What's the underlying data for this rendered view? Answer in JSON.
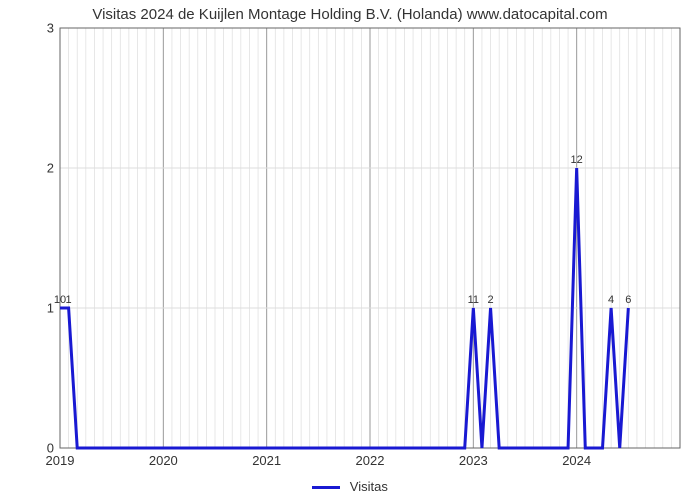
{
  "chart": {
    "type": "line",
    "title": "Visitas 2024 de Kuijlen Montage Holding B.V. (Holanda) www.datocapital.com",
    "legend_label": "Visitas",
    "line_color": "#1919d2",
    "line_width": 3,
    "background_color": "#ffffff",
    "border_color": "#666666",
    "major_grid_color": "#999999",
    "minor_grid_color": "#dddddd",
    "ylim": [
      0,
      3
    ],
    "ytick_step": 1,
    "yticks": [
      "0",
      "1",
      "2",
      "3"
    ],
    "x_range_months": 72,
    "x_years": [
      {
        "label": "2019",
        "month": 0
      },
      {
        "label": "2020",
        "month": 12
      },
      {
        "label": "2021",
        "month": 24
      },
      {
        "label": "2022",
        "month": 36
      },
      {
        "label": "2023",
        "month": 48
      },
      {
        "label": "2024",
        "month": 60
      }
    ],
    "time_series": [
      {
        "m": 0,
        "v": 1,
        "label": "10"
      },
      {
        "m": 1,
        "v": 1,
        "label": "1"
      },
      {
        "m": 2,
        "v": 0
      },
      {
        "m": 47,
        "v": 0
      },
      {
        "m": 48,
        "v": 1,
        "label": "11"
      },
      {
        "m": 49,
        "v": 0
      },
      {
        "m": 50,
        "v": 1,
        "label": "2"
      },
      {
        "m": 51,
        "v": 0
      },
      {
        "m": 59,
        "v": 0
      },
      {
        "m": 60,
        "v": 2,
        "label": "12"
      },
      {
        "m": 61,
        "v": 0
      },
      {
        "m": 62,
        "v": 0
      },
      {
        "m": 63,
        "v": 0
      },
      {
        "m": 64,
        "v": 1,
        "label": "4"
      },
      {
        "m": 65,
        "v": 0
      },
      {
        "m": 66,
        "v": 1,
        "label": "6"
      }
    ],
    "title_fontsize": 15,
    "axis_fontsize": 13,
    "barlabel_fontsize": 11
  }
}
